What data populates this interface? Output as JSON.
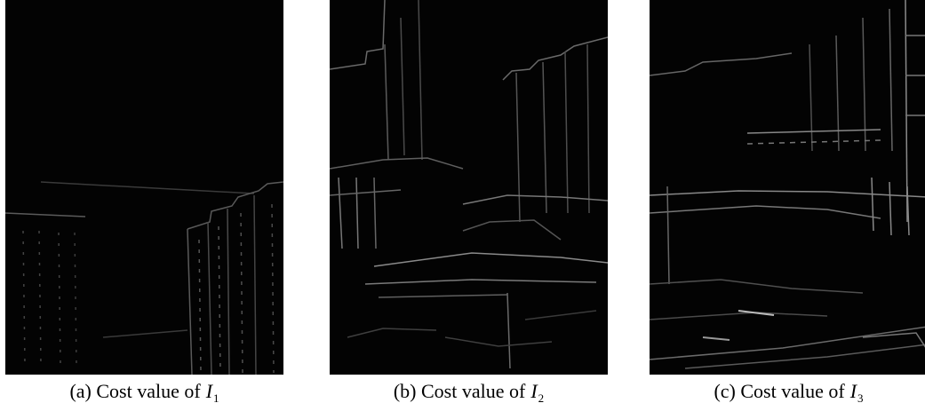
{
  "figures": [
    {
      "id": "a",
      "caption_prefix": "(a) Cost value of",
      "variable": "I",
      "subscript": "1"
    },
    {
      "id": "b",
      "caption_prefix": "(b) Cost value of",
      "variable": "I",
      "subscript": "2"
    },
    {
      "id": "c",
      "caption_prefix": "(c) Cost value of",
      "variable": "I",
      "subscript": "3"
    }
  ]
}
